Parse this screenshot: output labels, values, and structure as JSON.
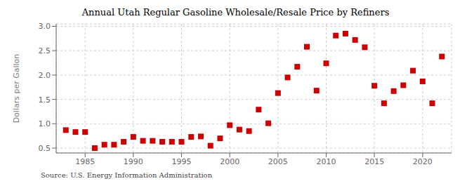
{
  "chart_data": {
    "type": "scatter",
    "title": "Annual Utah Regular Gasoline Wholesale/Resale Price by Refiners",
    "ylabel": "Dollars per Gallon",
    "annotation": "Source: U.S. Energy Information Administration",
    "x": [
      1983,
      1984,
      1985,
      1986,
      1987,
      1988,
      1989,
      1990,
      1991,
      1992,
      1993,
      1994,
      1995,
      1996,
      1997,
      1998,
      1999,
      2000,
      2001,
      2002,
      2003,
      2004,
      2005,
      2006,
      2007,
      2008,
      2009,
      2010,
      2011,
      2012,
      2013,
      2014,
      2015,
      2016,
      2017,
      2018,
      2019,
      2020,
      2021,
      2022
    ],
    "values": [
      0.87,
      0.83,
      0.83,
      0.5,
      0.57,
      0.57,
      0.63,
      0.73,
      0.65,
      0.65,
      0.63,
      0.63,
      0.63,
      0.73,
      0.74,
      0.55,
      0.7,
      0.97,
      0.88,
      0.85,
      1.29,
      1.01,
      1.63,
      1.95,
      2.17,
      2.58,
      1.68,
      2.24,
      2.81,
      2.85,
      2.72,
      2.57,
      1.78,
      1.42,
      1.67,
      1.79,
      2.09,
      1.87,
      1.42,
      2.38
    ],
    "color": "#cc0000",
    "marker": "square",
    "xlim": [
      1982,
      2023
    ],
    "xticks": [
      1985,
      1990,
      1995,
      2000,
      2005,
      2010,
      2015,
      2020
    ],
    "ylim": [
      0.4,
      3.05
    ],
    "yticks": [
      0.5,
      {
        "value": 1,
        "label": "1.0"
      },
      1.5,
      {
        "value": 2,
        "label": "2.0"
      },
      2.5,
      {
        "value": 3,
        "label": "3.0"
      }
    ],
    "grid": true
  }
}
